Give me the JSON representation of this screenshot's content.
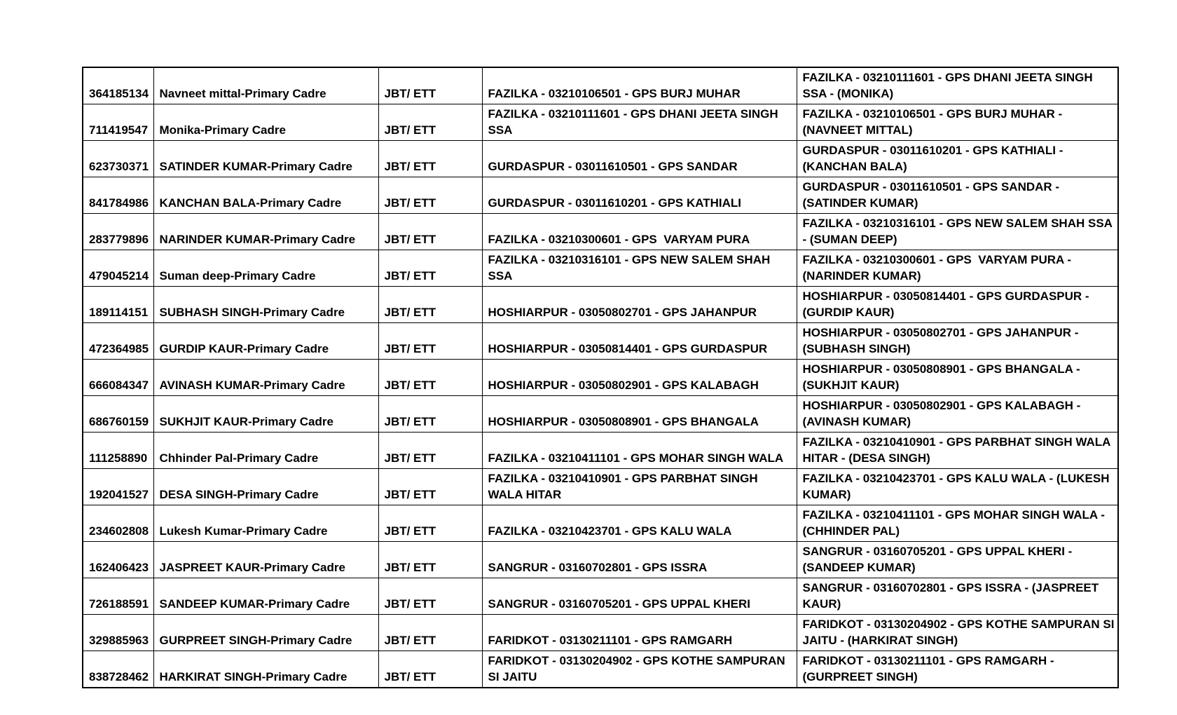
{
  "document": {
    "background_color": "#ffffff",
    "text_color": "#000000",
    "border_color": "#000000"
  },
  "table": {
    "rows": [
      {
        "id": "364185134",
        "name": "Navneet mittal-Primary Cadre",
        "qualification": "JBT/ ETT",
        "from_school": "FAZILKA - 03210106501 - GPS BURJ MUHAR",
        "to_school": "FAZILKA - 03210111601 - GPS DHANI JEETA SINGH SSA - (MONIKA)"
      },
      {
        "id": "711419547",
        "name": "Monika-Primary Cadre",
        "qualification": "JBT/ ETT",
        "from_school": "FAZILKA - 03210111601 - GPS DHANI JEETA SINGH SSA",
        "to_school": "FAZILKA - 03210106501 - GPS BURJ MUHAR - (NAVNEET MITTAL)"
      },
      {
        "id": "623730371",
        "name": "SATINDER KUMAR-Primary Cadre",
        "qualification": "JBT/ ETT",
        "from_school": "GURDASPUR - 03011610501 - GPS SANDAR",
        "to_school": "GURDASPUR - 03011610201 - GPS KATHIALI - (KANCHAN BALA)"
      },
      {
        "id": "841784986",
        "name": "KANCHAN BALA-Primary Cadre",
        "qualification": "JBT/ ETT",
        "from_school": "GURDASPUR - 03011610201 - GPS KATHIALI",
        "to_school": "GURDASPUR - 03011610501 - GPS SANDAR - (SATINDER KUMAR)"
      },
      {
        "id": "283779896",
        "name": "NARINDER KUMAR-Primary Cadre",
        "qualification": "JBT/ ETT",
        "from_school": "FAZILKA - 03210300601 - GPS  VARYAM PURA",
        "to_school": "FAZILKA - 03210316101 - GPS NEW SALEM SHAH SSA - (SUMAN DEEP)"
      },
      {
        "id": "479045214",
        "name": "Suman deep-Primary Cadre",
        "qualification": "JBT/ ETT",
        "from_school": "FAZILKA - 03210316101 - GPS NEW SALEM SHAH SSA",
        "to_school": "FAZILKA - 03210300601 - GPS  VARYAM PURA - (NARINDER KUMAR)"
      },
      {
        "id": "189114151",
        "name": "SUBHASH SINGH-Primary Cadre",
        "qualification": "JBT/ ETT",
        "from_school": "HOSHIARPUR - 03050802701 - GPS JAHANPUR",
        "to_school": "HOSHIARPUR - 03050814401 - GPS GURDASPUR - (GURDIP KAUR)"
      },
      {
        "id": "472364985",
        "name": "GURDIP KAUR-Primary Cadre",
        "qualification": "JBT/ ETT",
        "from_school": "HOSHIARPUR - 03050814401 - GPS GURDASPUR",
        "to_school": "HOSHIARPUR - 03050802701 - GPS JAHANPUR - (SUBHASH SINGH)"
      },
      {
        "id": "666084347",
        "name": "AVINASH KUMAR-Primary Cadre",
        "qualification": "JBT/ ETT",
        "from_school": "HOSHIARPUR - 03050802901 - GPS KALABAGH",
        "to_school": "HOSHIARPUR - 03050808901 - GPS BHANGALA - (SUKHJIT KAUR)"
      },
      {
        "id": "686760159",
        "name": "SUKHJIT KAUR-Primary Cadre",
        "qualification": "JBT/ ETT",
        "from_school": "HOSHIARPUR - 03050808901 - GPS BHANGALA",
        "to_school": "HOSHIARPUR - 03050802901 - GPS KALABAGH - (AVINASH KUMAR)"
      },
      {
        "id": "111258890",
        "name": "Chhinder Pal-Primary Cadre",
        "qualification": "JBT/ ETT",
        "from_school": "FAZILKA - 03210411101 - GPS MOHAR SINGH WALA",
        "to_school": "FAZILKA - 03210410901 - GPS PARBHAT SINGH WALA HITAR - (DESA SINGH)"
      },
      {
        "id": "192041527",
        "name": "DESA SINGH-Primary Cadre",
        "qualification": "JBT/ ETT",
        "from_school": "FAZILKA - 03210410901 - GPS PARBHAT SINGH WALA HITAR",
        "to_school": "FAZILKA - 03210423701 - GPS KALU WALA - (LUKESH KUMAR)"
      },
      {
        "id": "234602808",
        "name": "Lukesh Kumar-Primary Cadre",
        "qualification": "JBT/ ETT",
        "from_school": "FAZILKA - 03210423701 - GPS KALU WALA",
        "to_school": "FAZILKA - 03210411101 - GPS MOHAR SINGH WALA - (CHHINDER PAL)"
      },
      {
        "id": "162406423",
        "name": "JASPREET KAUR-Primary Cadre",
        "qualification": "JBT/ ETT",
        "from_school": "SANGRUR - 03160702801 - GPS ISSRA",
        "to_school": "SANGRUR - 03160705201 - GPS UPPAL KHERI - (SANDEEP KUMAR)"
      },
      {
        "id": "726188591",
        "name": "SANDEEP KUMAR-Primary Cadre",
        "qualification": "JBT/ ETT",
        "from_school": "SANGRUR - 03160705201 - GPS UPPAL KHERI",
        "to_school": "SANGRUR - 03160702801 - GPS ISSRA - (JASPREET KAUR)"
      },
      {
        "id": "329885963",
        "name": "GURPREET SINGH-Primary Cadre",
        "qualification": "JBT/ ETT",
        "from_school": "FARIDKOT - 03130211101 - GPS RAMGARH",
        "to_school": "FARIDKOT - 03130204902 - GPS KOTHE SAMPURAN SI JAITU - (HARKIRAT SINGH)"
      },
      {
        "id": "838728462",
        "name": "HARKIRAT SINGH-Primary Cadre",
        "qualification": "JBT/ ETT",
        "from_school": "FARIDKOT - 03130204902 - GPS KOTHE SAMPURAN SI JAITU",
        "to_school": "FARIDKOT - 03130211101 - GPS RAMGARH - (GURPREET SINGH)"
      }
    ]
  }
}
